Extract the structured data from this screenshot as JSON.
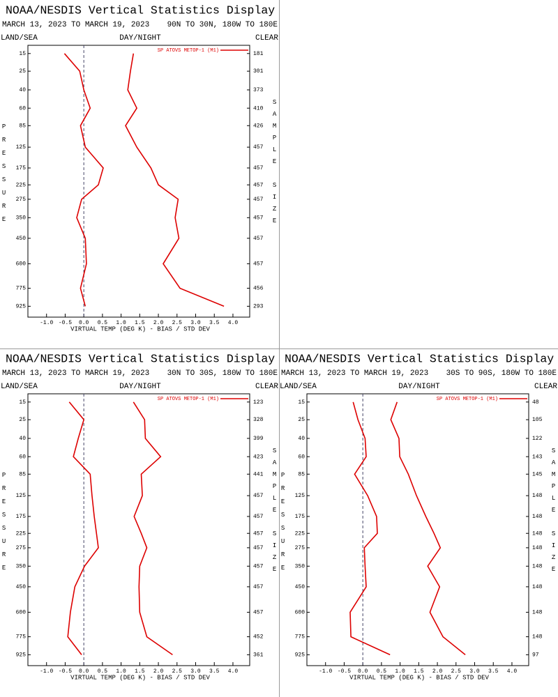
{
  "chart_data": [
    {
      "type": "line",
      "title": "NOAA/NESDIS Vertical Statistics Display",
      "subtitle": "MARCH 13, 2023 TO MARCH 19, 2023",
      "region": "90N TO 30N, 180W TO 180E",
      "land_sea": "LAND/SEA",
      "day_night": "DAY/NIGHT",
      "clear": "CLEAR",
      "ylabel": "PRESSURE",
      "y2label": "SAMPLE SIZE",
      "xlabel": "VIRTUAL TEMP (DEG K) - BIAS / STD DEV",
      "y": [
        15,
        25,
        40,
        60,
        85,
        125,
        175,
        225,
        275,
        350,
        450,
        600,
        775,
        925
      ],
      "sample_size": [
        181,
        301,
        373,
        410,
        426,
        457,
        457,
        457,
        457,
        457,
        457,
        457,
        456,
        293
      ],
      "series": [
        {
          "name": "SP ATOVS METOP-1 (M1)",
          "color": "#dd0000",
          "values": [
            -0.52,
            -0.11,
            0.0,
            0.17,
            -0.09,
            0.04,
            0.52,
            0.39,
            -0.06,
            -0.19,
            0.04,
            0.07,
            -0.09,
            0.04
          ]
        },
        {
          "color": "#dd0000",
          "values": [
            1.33,
            1.25,
            1.18,
            1.42,
            1.12,
            1.42,
            1.8,
            2.0,
            2.53,
            2.45,
            2.55,
            2.13,
            2.58,
            3.76
          ]
        }
      ],
      "xlim": [
        -1.5,
        4.45
      ],
      "xticks": [
        {
          "value": -1,
          "label": "-1.0"
        },
        -0.5,
        {
          "value": 0,
          "label": "0.0"
        },
        0.5,
        {
          "value": 1,
          "label": "1.0"
        },
        1.5,
        {
          "value": 2,
          "label": "2.0"
        },
        2.5,
        {
          "value": 3,
          "label": "3.0"
        },
        3.5,
        {
          "value": 4,
          "label": "4.0"
        }
      ],
      "ylim": [
        1025,
        11.5
      ],
      "yscale": "power",
      "yscale_exponent": 0.286,
      "legend": "upper right",
      "grid": false
    },
    {
      "type": "line",
      "title": "NOAA/NESDIS Vertical Statistics Display",
      "subtitle": "MARCH 13, 2023 TO MARCH 19, 2023",
      "region": "30N TO 30S, 180W TO 180E",
      "land_sea": "LAND/SEA",
      "day_night": "DAY/NIGHT",
      "clear": "CLEAR",
      "ylabel": "PRESSURE",
      "y2label": "SAMPLE SIZE",
      "xlabel": "VIRTUAL TEMP (DEG K) - BIAS / STD DEV",
      "y": [
        15,
        25,
        40,
        60,
        85,
        125,
        175,
        225,
        275,
        350,
        450,
        600,
        775,
        925
      ],
      "sample_size": [
        123,
        328,
        399,
        423,
        441,
        457,
        457,
        457,
        457,
        457,
        457,
        457,
        452,
        361
      ],
      "series": [
        {
          "name": "SP ATOVS METOP-1 (M1)",
          "color": "#dd0000",
          "values": [
            -0.39,
            0.0,
            -0.15,
            -0.28,
            0.17,
            0.22,
            0.28,
            0.34,
            0.39,
            0.02,
            -0.24,
            -0.36,
            -0.43,
            -0.06
          ]
        },
        {
          "color": "#dd0000",
          "values": [
            1.33,
            1.63,
            1.65,
            2.06,
            1.54,
            1.57,
            1.35,
            1.54,
            1.69,
            1.5,
            1.48,
            1.5,
            1.69,
            2.38
          ]
        }
      ],
      "xlim": [
        -1.5,
        4.45
      ],
      "xticks": [
        {
          "value": -1,
          "label": "-1.0"
        },
        -0.5,
        {
          "value": 0,
          "label": "0.0"
        },
        0.5,
        {
          "value": 1,
          "label": "1.0"
        },
        1.5,
        {
          "value": 2,
          "label": "2.0"
        },
        2.5,
        {
          "value": 3,
          "label": "3.0"
        },
        3.5,
        {
          "value": 4,
          "label": "4.0"
        }
      ],
      "ylim": [
        1025,
        11.5
      ],
      "yscale": "power",
      "yscale_exponent": 0.286,
      "legend": "upper right",
      "grid": false
    },
    {
      "type": "line",
      "title": "NOAA/NESDIS Vertical Statistics Display",
      "subtitle": "MARCH 13, 2023 TO MARCH 19, 2023",
      "region": "30S TO 90S, 180W TO 180E",
      "land_sea": "LAND/SEA",
      "day_night": "DAY/NIGHT",
      "clear": "CLEAR",
      "ylabel": "PRESSURE",
      "y2label": "SAMPLE SIZE",
      "xlabel": "VIRTUAL TEMP (DEG K) - BIAS / STD DEV",
      "y": [
        15,
        25,
        40,
        60,
        85,
        125,
        175,
        225,
        275,
        350,
        450,
        600,
        775,
        925
      ],
      "sample_size": [
        48,
        105,
        122,
        143,
        145,
        148,
        148,
        148,
        148,
        148,
        148,
        148,
        148,
        97
      ],
      "series": [
        {
          "name": "SP ATOVS METOP-1 (M1)",
          "color": "#dd0000",
          "values": [
            -0.26,
            -0.13,
            0.06,
            0.09,
            -0.22,
            0.13,
            0.37,
            0.39,
            0.04,
            0.06,
            0.09,
            -0.34,
            -0.32,
            0.73
          ]
        },
        {
          "color": "#dd0000",
          "values": [
            0.92,
            0.75,
            0.97,
            0.99,
            1.22,
            1.44,
            1.69,
            1.91,
            2.08,
            1.74,
            2.06,
            1.8,
            2.15,
            2.75
          ]
        }
      ],
      "xlim": [
        -1.5,
        4.45
      ],
      "xticks": [
        {
          "value": -1,
          "label": "-1.0"
        },
        -0.5,
        {
          "value": 0,
          "label": "0.0"
        },
        0.5,
        {
          "value": 1,
          "label": "1.0"
        },
        1.5,
        {
          "value": 2,
          "label": "2.0"
        },
        2.5,
        {
          "value": 3,
          "label": "3.0"
        },
        3.5,
        {
          "value": 4,
          "label": "4.0"
        }
      ],
      "ylim": [
        1025,
        11.5
      ],
      "yscale": "power",
      "yscale_exponent": 0.286,
      "legend": "upper right",
      "grid": false
    }
  ]
}
